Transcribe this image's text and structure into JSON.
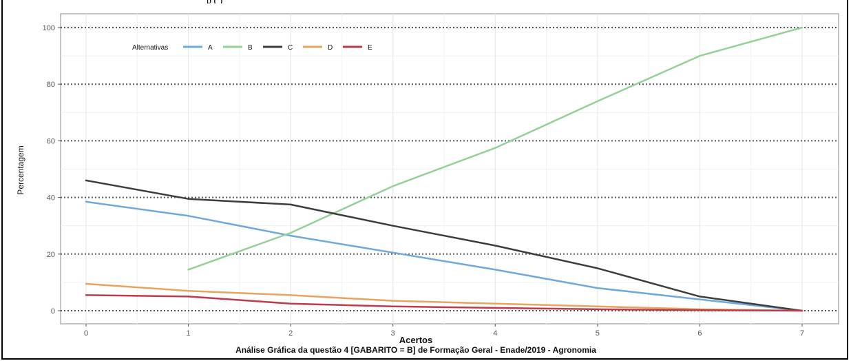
{
  "top_line": "p         (                    )",
  "chart_data": {
    "type": "line",
    "title": "",
    "xlabel": "Acertos",
    "ylabel": "Percentagem",
    "caption": "Análise Gráfica da questão 4 [GABARITO = B] de Formação Geral - Enade/2019 - Agronomia",
    "x": [
      0,
      1,
      2,
      3,
      4,
      5,
      6,
      7
    ],
    "xlim": [
      0,
      7
    ],
    "ylim": [
      0,
      100
    ],
    "x_ticks": [
      "0",
      "1",
      "2",
      "3",
      "4",
      "5",
      "6",
      "7"
    ],
    "y_ticks": [
      "0",
      "20",
      "40",
      "60",
      "80",
      "100"
    ],
    "grid": true,
    "legend": {
      "title": "Alternativas",
      "position": "top-left"
    },
    "series": [
      {
        "name": "A",
        "color": "#6fa8dc",
        "x": [
          0,
          1,
          2,
          3,
          4,
          5,
          6,
          7
        ],
        "values": [
          38.5,
          33.5,
          26.5,
          20.5,
          14.5,
          8,
          4,
          0
        ]
      },
      {
        "name": "B",
        "color": "#93d194",
        "x": [
          1,
          2,
          3,
          4,
          5,
          6,
          7
        ],
        "values": [
          14.5,
          27.5,
          44,
          57.5,
          74,
          90,
          100
        ]
      },
      {
        "name": "C",
        "color": "#3d3d3d",
        "x": [
          0,
          1,
          2,
          3,
          4,
          5,
          6,
          7
        ],
        "values": [
          46,
          39.5,
          37.5,
          30,
          23,
          15,
          5,
          0
        ]
      },
      {
        "name": "D",
        "color": "#e8a35c",
        "x": [
          0,
          1,
          2,
          3,
          4,
          5,
          6,
          7
        ],
        "values": [
          9.5,
          7,
          5.5,
          3.5,
          2.5,
          1.5,
          0.5,
          0
        ]
      },
      {
        "name": "E",
        "color": "#c0394b",
        "x": [
          0,
          1,
          2,
          3,
          4,
          5,
          6,
          7
        ],
        "values": [
          5.5,
          5,
          2.5,
          1.5,
          1,
          0.5,
          0.2,
          0
        ]
      }
    ]
  }
}
